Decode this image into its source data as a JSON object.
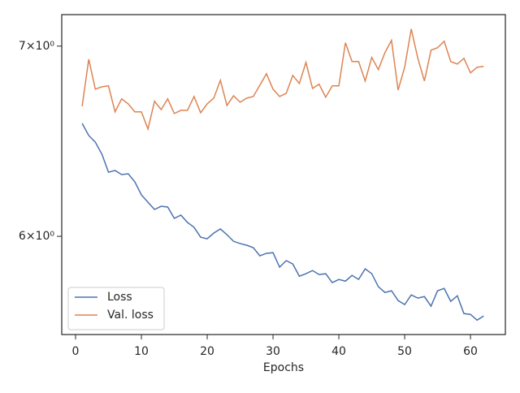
{
  "chart_data": {
    "type": "line",
    "xlabel": "Epochs",
    "x": [
      1,
      2,
      3,
      4,
      5,
      6,
      7,
      8,
      9,
      10,
      11,
      12,
      13,
      14,
      15,
      16,
      17,
      18,
      19,
      20,
      21,
      22,
      23,
      24,
      25,
      26,
      27,
      28,
      29,
      30,
      31,
      32,
      33,
      34,
      35,
      36,
      37,
      38,
      39,
      40,
      41,
      42,
      43,
      44,
      45,
      46,
      47,
      48,
      49,
      50,
      51,
      52,
      53,
      54,
      55,
      56,
      57,
      58,
      59,
      60,
      61,
      62
    ],
    "series": [
      {
        "name": "Loss",
        "color": "#4c72b0",
        "values": [
          6.575,
          6.511,
          6.476,
          6.413,
          6.32,
          6.329,
          6.308,
          6.312,
          6.271,
          6.205,
          6.168,
          6.132,
          6.148,
          6.144,
          6.088,
          6.104,
          6.068,
          6.044,
          5.996,
          5.988,
          6.016,
          6.036,
          6.008,
          5.976,
          5.965,
          5.957,
          5.945,
          5.906,
          5.918,
          5.921,
          5.852,
          5.883,
          5.867,
          5.809,
          5.821,
          5.836,
          5.817,
          5.821,
          5.779,
          5.794,
          5.786,
          5.813,
          5.794,
          5.844,
          5.821,
          5.76,
          5.733,
          5.741,
          5.696,
          5.677,
          5.722,
          5.707,
          5.714,
          5.67,
          5.741,
          5.752,
          5.692,
          5.718,
          5.636,
          5.632,
          5.606,
          5.625
        ]
      },
      {
        "name": "Val. loss",
        "color": "#dd8452",
        "values": [
          6.667,
          6.926,
          6.76,
          6.773,
          6.778,
          6.637,
          6.707,
          6.68,
          6.637,
          6.637,
          6.545,
          6.694,
          6.649,
          6.707,
          6.628,
          6.645,
          6.645,
          6.72,
          6.632,
          6.68,
          6.711,
          6.809,
          6.671,
          6.724,
          6.689,
          6.711,
          6.72,
          6.782,
          6.845,
          6.76,
          6.72,
          6.737,
          6.836,
          6.791,
          6.908,
          6.764,
          6.787,
          6.716,
          6.778,
          6.778,
          7.019,
          6.913,
          6.913,
          6.805,
          6.936,
          6.868,
          6.963,
          7.033,
          6.755,
          6.881,
          7.098,
          6.931,
          6.805,
          6.977,
          6.991,
          7.028,
          6.913,
          6.899,
          6.931,
          6.85,
          6.881,
          6.886
        ]
      }
    ],
    "xlim": [
      -2.1,
      65.3
    ],
    "xticks": [
      0,
      10,
      20,
      30,
      40,
      50,
      60
    ],
    "ylim": [
      5.541,
      7.181
    ],
    "ylog": true,
    "yticks": [
      {
        "value": 6,
        "label": "6×10⁰"
      },
      {
        "value": 7,
        "label": "7×10⁰"
      }
    ],
    "legend": "lower left"
  }
}
